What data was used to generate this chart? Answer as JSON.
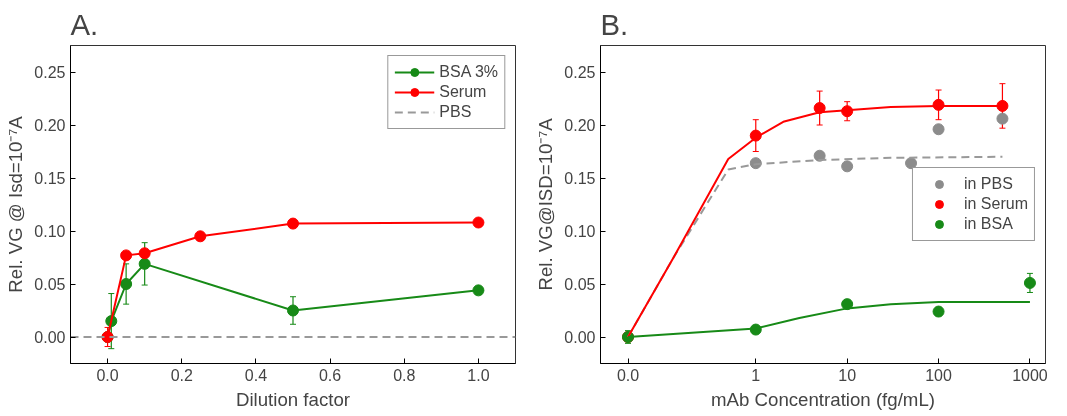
{
  "chart_data": [
    {
      "type": "line",
      "title": "A.",
      "xlabel": "Dilution factor",
      "ylabel": "Rel. VG @ Isd=10⁻⁷A",
      "xlim": [
        -0.1,
        1.1
      ],
      "xticks": [
        {
          "value": 0,
          "label": "0.0"
        },
        0.2,
        0.4,
        0.6,
        0.8,
        {
          "value": 1,
          "label": "1.0"
        }
      ],
      "ylim": [
        -0.025,
        0.275
      ],
      "yticks": [
        {
          "value": 0,
          "label": "0.00"
        },
        0.05,
        {
          "value": 0.1,
          "label": "0.10"
        },
        0.15,
        {
          "value": 0.2,
          "label": "0.20"
        },
        0.25
      ],
      "grid": false,
      "legend": "top right",
      "marker": "circle",
      "series": [
        {
          "name": "BSA 3%",
          "color": "#178a17",
          "x": [
            0,
            0.01,
            0.05,
            0.1,
            0.5,
            1.0
          ],
          "values": [
            0,
            0.015,
            0.05,
            0.069,
            0.025,
            0.044
          ],
          "errors": [
            null,
            0.026,
            0.019,
            0.02,
            0.013,
            null
          ]
        },
        {
          "name": "Serum",
          "color": "#ff0000",
          "x": [
            0,
            0.05,
            0.1,
            0.25,
            0.5,
            1.0
          ],
          "values": [
            0,
            0.077,
            0.079,
            0.095,
            0.107,
            0.108
          ],
          "errors": [
            0.009,
            null,
            null,
            null,
            null,
            null
          ]
        },
        {
          "name": "PBS",
          "color": "#999999",
          "marker": "none",
          "line_style": "dashed",
          "x": [
            -0.1,
            1.1
          ],
          "values": [
            0,
            0
          ]
        }
      ]
    },
    {
      "type": "scatter",
      "title": "B.",
      "xlabel": "mAb Concentration (fg/mL)",
      "ylabel": "Rel. VG@ISD=10⁻⁷A",
      "log": "x",
      "xlim": [
        0.02,
        1480
      ],
      "xticks": [
        {
          "value": 0.04,
          "label": "0.0"
        },
        1,
        10,
        100,
        1000
      ],
      "ylim": [
        -0.025,
        0.275
      ],
      "yticks": [
        {
          "value": 0,
          "label": "0.00"
        },
        0.05,
        {
          "value": 0.1,
          "label": "0.10"
        },
        0.15,
        {
          "value": 0.2,
          "label": "0.20"
        },
        0.25
      ],
      "grid": false,
      "legend": "right",
      "marker": "circle",
      "series": [
        {
          "name": "in PBS",
          "color": "#8c8c8c",
          "x": [
            1,
            5,
            10,
            50,
            100,
            500
          ],
          "values": [
            0.164,
            0.171,
            0.161,
            0.164,
            0.196,
            0.206
          ]
        },
        {
          "name": "in Serum",
          "color": "#ff0000",
          "x": [
            0.04,
            1,
            5,
            10,
            100,
            500
          ],
          "values": [
            0,
            0.19,
            0.216,
            0.213,
            0.219,
            0.218
          ],
          "errors": [
            null,
            0.015,
            0.016,
            0.009,
            0.014,
            0.021
          ]
        },
        {
          "name": "in BSA",
          "color": "#178a17",
          "x": [
            0.04,
            1,
            10,
            100,
            1000
          ],
          "values": [
            0,
            0.007,
            0.031,
            0.024,
            0.051
          ],
          "errors": [
            0.006,
            null,
            0.004,
            0.004,
            0.009
          ]
        },
        {
          "type": "line",
          "color": "#999999",
          "marker": "none",
          "line_style": "dashed",
          "x": [
            0.04,
            0.126,
            0.5,
            1,
            5,
            30,
            500
          ],
          "values": [
            0,
            0.075,
            0.158,
            0.163,
            0.167,
            0.169,
            0.17
          ]
        },
        {
          "type": "line",
          "color": "#ff0000",
          "marker": "none",
          "x": [
            0.04,
            0.126,
            0.5,
            1,
            2,
            5,
            10,
            30,
            100,
            500
          ],
          "values": [
            0,
            0.075,
            0.168,
            0.188,
            0.203,
            0.212,
            0.214,
            0.217,
            0.218,
            0.218
          ]
        },
        {
          "type": "line",
          "color": "#178a17",
          "marker": "none",
          "x": [
            0.04,
            0.2,
            1,
            3,
            10,
            30,
            100,
            1000
          ],
          "values": [
            0,
            0.004,
            0.008,
            0.018,
            0.027,
            0.031,
            0.033,
            0.033
          ]
        }
      ]
    }
  ]
}
